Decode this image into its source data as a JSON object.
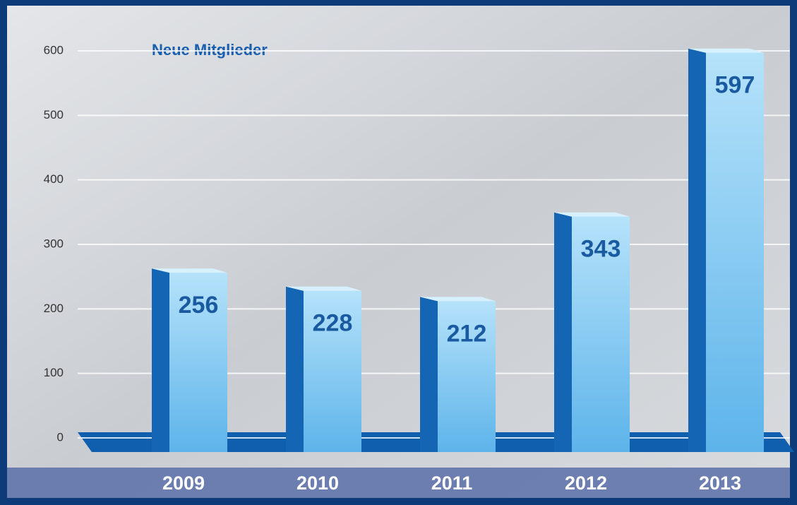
{
  "chart_data": {
    "type": "bar",
    "title": "Neue Mitglieder",
    "categories": [
      "2009",
      "2010",
      "2011",
      "2012",
      "2013"
    ],
    "values": [
      256,
      228,
      212,
      343,
      597
    ],
    "color": "#7cc6f0",
    "ylim": [
      0,
      600
    ],
    "yticks": [
      0,
      100,
      200,
      300,
      400,
      500,
      600
    ],
    "grid": true
  }
}
